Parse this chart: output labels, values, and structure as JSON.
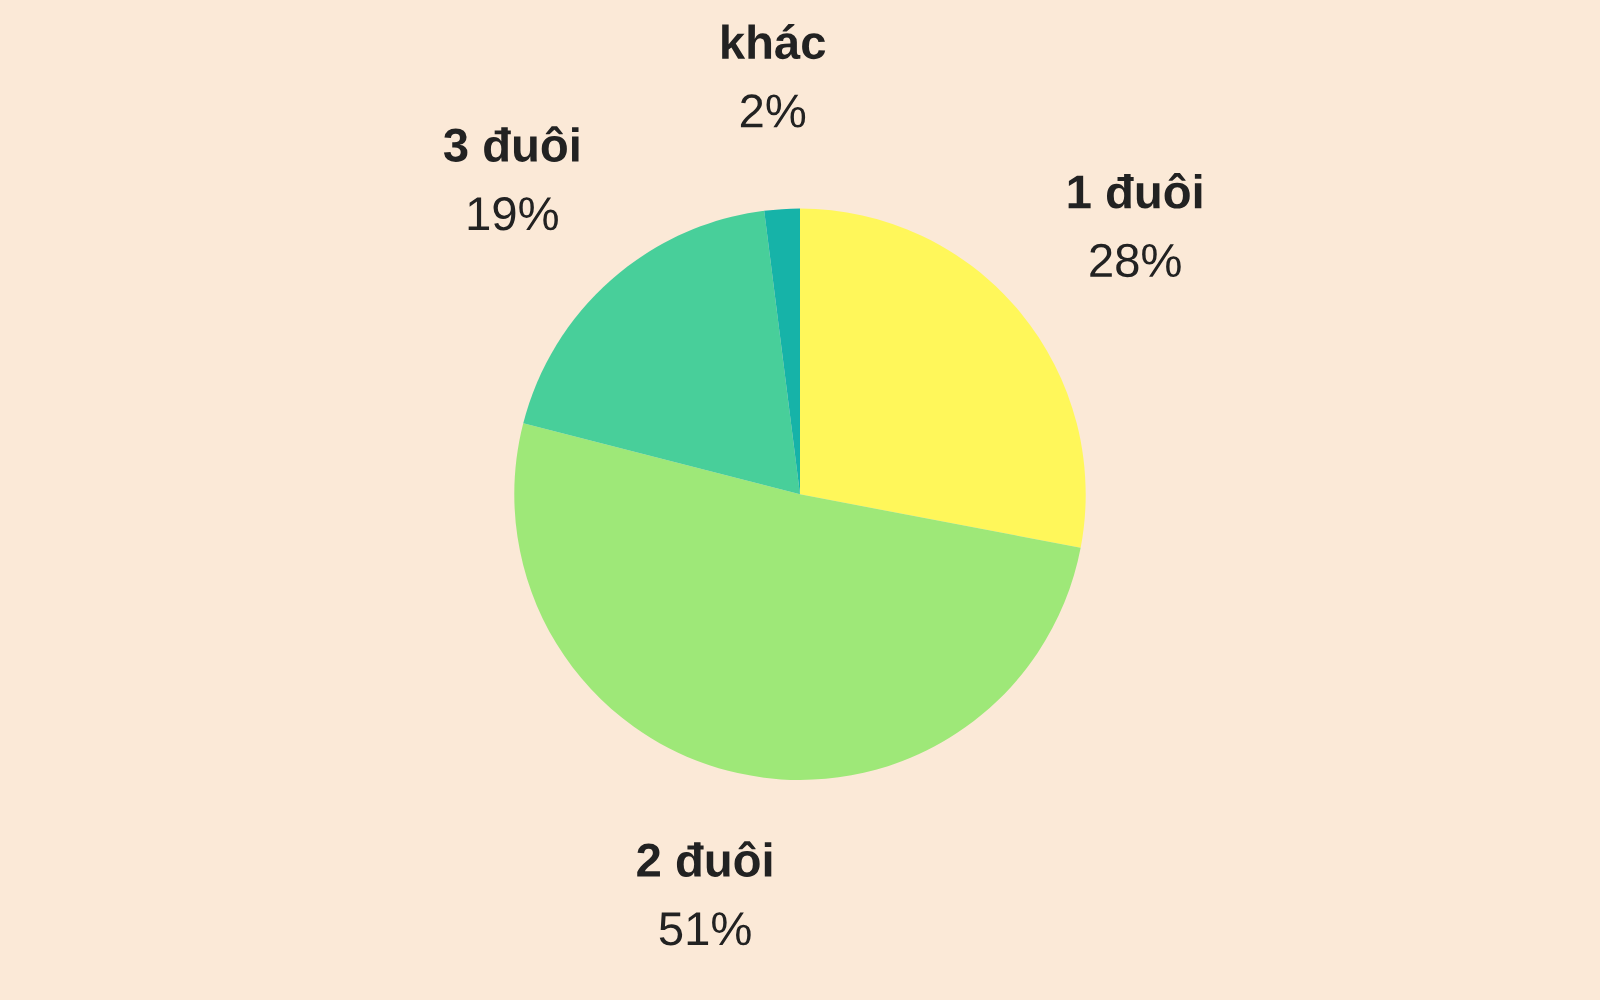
{
  "chart_data": {
    "type": "pie",
    "categories": [
      "1 đuôi",
      "2 đuôi",
      "3 đuôi",
      "khác"
    ],
    "values": [
      28,
      51,
      19,
      2
    ],
    "value_labels": [
      "28%",
      "51%",
      "19%",
      "2%"
    ],
    "colors": [
      "#fff75a",
      "#9ee878",
      "#48cf9a",
      "#16b3a8"
    ],
    "legend": false
  }
}
